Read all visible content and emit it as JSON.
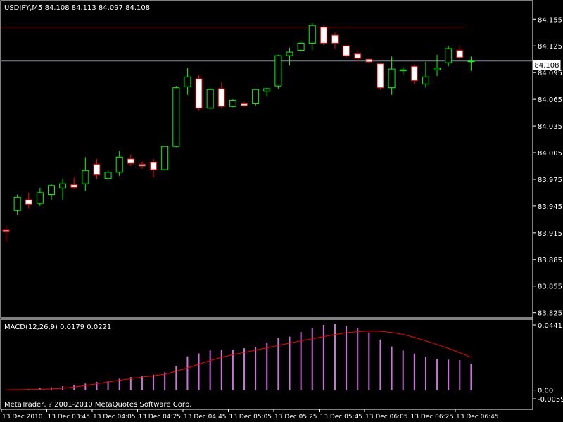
{
  "colors": {
    "background": "#000000",
    "foreground": "#ffffff",
    "bull_candle": "#00ff00",
    "bear_candle_body": "#ffffff",
    "bear_candle_border": "#ff0000",
    "bid_line": "#7f8c9c",
    "resistance_line": "#b22222",
    "macd_hist": "#d070e0",
    "signal_line": "#ff0000"
  },
  "chart_data": [
    {
      "type": "candlestick",
      "title": "USDJPY,M5  84.108 84.113 84.097 84.108",
      "symbol": "USDJPY",
      "timeframe": "M5",
      "ohlc_header": "84.108 84.113 84.097 84.108",
      "ylim": [
        83.82,
        84.175
      ],
      "yticks": [
        "84.155",
        "84.125",
        "84.095",
        "84.065",
        "84.035",
        "84.005",
        "83.975",
        "83.945",
        "83.915",
        "83.885",
        "83.855",
        "83.825"
      ],
      "current_price_label": "84.108",
      "current_price": 84.108,
      "resistance_level": 84.146,
      "candles": [
        {
          "o": 83.918,
          "h": 83.922,
          "l": 83.905,
          "c": 83.916
        },
        {
          "o": 83.94,
          "h": 83.958,
          "l": 83.935,
          "c": 83.955
        },
        {
          "o": 83.952,
          "h": 83.96,
          "l": 83.942,
          "c": 83.947
        },
        {
          "o": 83.948,
          "h": 83.965,
          "l": 83.945,
          "c": 83.96
        },
        {
          "o": 83.958,
          "h": 83.97,
          "l": 83.952,
          "c": 83.968
        },
        {
          "o": 83.965,
          "h": 83.975,
          "l": 83.952,
          "c": 83.97
        },
        {
          "o": 83.969,
          "h": 83.977,
          "l": 83.964,
          "c": 83.966
        },
        {
          "o": 83.97,
          "h": 84.0,
          "l": 83.962,
          "c": 83.985
        },
        {
          "o": 83.992,
          "h": 83.998,
          "l": 83.975,
          "c": 83.98
        },
        {
          "o": 83.976,
          "h": 83.985,
          "l": 83.973,
          "c": 83.983
        },
        {
          "o": 83.983,
          "h": 84.007,
          "l": 83.979,
          "c": 84.0
        },
        {
          "o": 83.998,
          "h": 84.003,
          "l": 83.99,
          "c": 83.993
        },
        {
          "o": 83.992,
          "h": 83.995,
          "l": 83.987,
          "c": 83.99
        },
        {
          "o": 83.994,
          "h": 83.998,
          "l": 83.977,
          "c": 83.986
        },
        {
          "o": 83.986,
          "h": 84.012,
          "l": 83.985,
          "c": 84.012
        },
        {
          "o": 84.012,
          "h": 84.08,
          "l": 84.011,
          "c": 84.078
        },
        {
          "o": 84.079,
          "h": 84.1,
          "l": 84.07,
          "c": 84.09
        },
        {
          "o": 84.088,
          "h": 84.092,
          "l": 84.052,
          "c": 84.055
        },
        {
          "o": 84.055,
          "h": 84.078,
          "l": 84.054,
          "c": 84.076
        },
        {
          "o": 84.077,
          "h": 84.084,
          "l": 84.055,
          "c": 84.057
        },
        {
          "o": 84.057,
          "h": 84.065,
          "l": 84.056,
          "c": 84.064
        },
        {
          "o": 84.06,
          "h": 84.062,
          "l": 84.057,
          "c": 84.058
        },
        {
          "o": 84.06,
          "h": 84.077,
          "l": 84.058,
          "c": 84.076
        },
        {
          "o": 84.074,
          "h": 84.078,
          "l": 84.068,
          "c": 84.077
        },
        {
          "o": 84.08,
          "h": 84.115,
          "l": 84.077,
          "c": 84.114
        },
        {
          "o": 84.114,
          "h": 84.123,
          "l": 84.103,
          "c": 84.118
        },
        {
          "o": 84.12,
          "h": 84.13,
          "l": 84.118,
          "c": 84.128
        },
        {
          "o": 84.128,
          "h": 84.151,
          "l": 84.12,
          "c": 84.148
        },
        {
          "o": 84.146,
          "h": 84.148,
          "l": 84.126,
          "c": 84.128
        },
        {
          "o": 84.137,
          "h": 84.14,
          "l": 84.122,
          "c": 84.128
        },
        {
          "o": 84.125,
          "h": 84.126,
          "l": 84.112,
          "c": 84.114
        },
        {
          "o": 84.116,
          "h": 84.12,
          "l": 84.108,
          "c": 84.111
        },
        {
          "o": 84.11,
          "h": 84.111,
          "l": 84.105,
          "c": 84.107
        },
        {
          "o": 84.105,
          "h": 84.106,
          "l": 84.076,
          "c": 84.078
        },
        {
          "o": 84.078,
          "h": 84.113,
          "l": 84.07,
          "c": 84.099
        },
        {
          "o": 84.098,
          "h": 84.102,
          "l": 84.092,
          "c": 84.098
        },
        {
          "o": 84.102,
          "h": 84.104,
          "l": 84.082,
          "c": 84.086
        },
        {
          "o": 84.082,
          "h": 84.107,
          "l": 84.078,
          "c": 84.09
        },
        {
          "o": 84.098,
          "h": 84.115,
          "l": 84.091,
          "c": 84.1
        },
        {
          "o": 84.106,
          "h": 84.125,
          "l": 84.102,
          "c": 84.122
        },
        {
          "o": 84.12,
          "h": 84.125,
          "l": 84.11,
          "c": 84.112
        },
        {
          "o": 84.108,
          "h": 84.113,
          "l": 84.097,
          "c": 84.108
        }
      ]
    },
    {
      "type": "histogram+line",
      "title": "MACD(12,26,9) 0.0179 0.0221",
      "ylim": [
        -0.0059,
        0.0441
      ],
      "yticks": [
        "0.0441",
        "0.00",
        "-0.0059"
      ],
      "macd": [
        0.0002,
        0.0004,
        0.0007,
        0.0012,
        0.0019,
        0.0026,
        0.0034,
        0.0044,
        0.0055,
        0.0065,
        0.0077,
        0.0088,
        0.0095,
        0.0104,
        0.012,
        0.0165,
        0.0228,
        0.0248,
        0.0268,
        0.0272,
        0.0274,
        0.0283,
        0.0292,
        0.0321,
        0.0355,
        0.0362,
        0.0393,
        0.0418,
        0.0441,
        0.0446,
        0.0432,
        0.042,
        0.039,
        0.0342,
        0.0295,
        0.0268,
        0.0247,
        0.0226,
        0.021,
        0.0206,
        0.0203,
        0.0179
      ],
      "signal": [
        0.0002,
        0.0003,
        0.0004,
        0.0005,
        0.0008,
        0.0012,
        0.002,
        0.0031,
        0.0043,
        0.0055,
        0.0066,
        0.0077,
        0.0088,
        0.0097,
        0.0107,
        0.0128,
        0.015,
        0.0175,
        0.02,
        0.0222,
        0.024,
        0.0255,
        0.027,
        0.0286,
        0.0302,
        0.0318,
        0.0333,
        0.0347,
        0.0362,
        0.0376,
        0.0388,
        0.0396,
        0.04,
        0.0398,
        0.039,
        0.0377,
        0.0357,
        0.0333,
        0.0308,
        0.0282,
        0.0253,
        0.0221
      ]
    }
  ],
  "x_axis": {
    "time_labels": [
      "13 Dec 2010",
      "13 Dec 03:45",
      "13 Dec 04:05",
      "13 Dec 04:25",
      "13 Dec 04:45",
      "13 Dec 05:05",
      "13 Dec 05:25",
      "13 Dec 05:45",
      "13 Dec 06:05",
      "13 Dec 06:25",
      "13 Dec 06:45"
    ]
  },
  "copyright": "MetaTrader, ? 2001-2010 MetaQuotes Software Corp."
}
